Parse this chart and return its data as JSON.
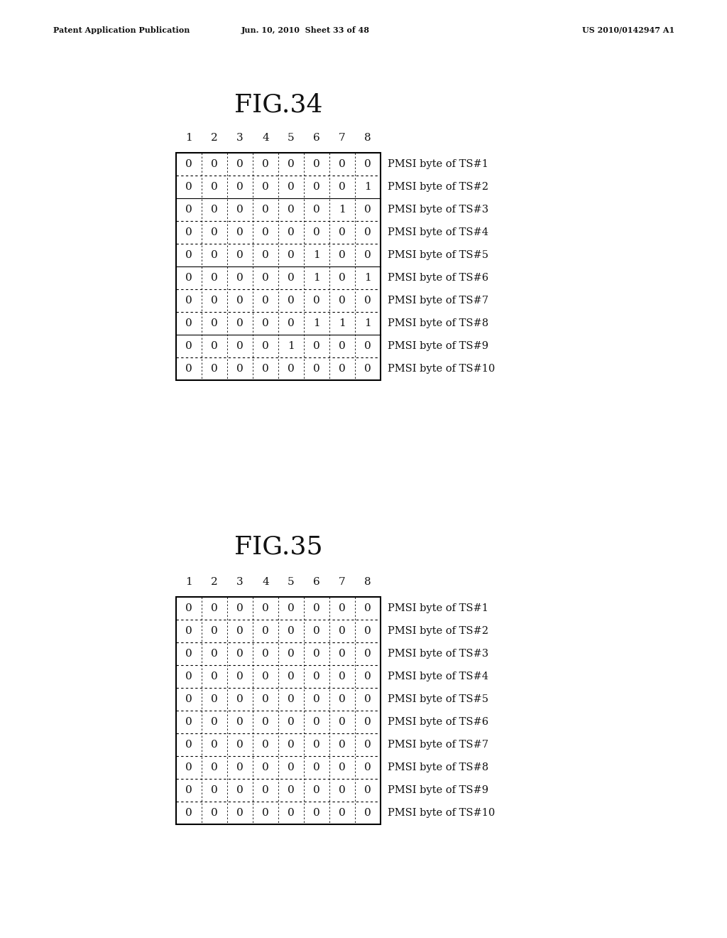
{
  "header_text_left": "Patent Application Publication",
  "header_text_mid": "Jun. 10, 2010  Sheet 33 of 48",
  "header_text_right": "US 2010/0142947 A1",
  "fig34_title": "FIG.34",
  "fig35_title": "FIG.35",
  "col_headers": [
    "1",
    "2",
    "3",
    "4",
    "5",
    "6",
    "7",
    "8"
  ],
  "fig34_data": [
    [
      0,
      0,
      0,
      0,
      0,
      0,
      0,
      0
    ],
    [
      0,
      0,
      0,
      0,
      0,
      0,
      0,
      1
    ],
    [
      0,
      0,
      0,
      0,
      0,
      0,
      1,
      0
    ],
    [
      0,
      0,
      0,
      0,
      0,
      0,
      0,
      0
    ],
    [
      0,
      0,
      0,
      0,
      0,
      1,
      0,
      0
    ],
    [
      0,
      0,
      0,
      0,
      0,
      1,
      0,
      1
    ],
    [
      0,
      0,
      0,
      0,
      0,
      0,
      0,
      0
    ],
    [
      0,
      0,
      0,
      0,
      0,
      1,
      1,
      1
    ],
    [
      0,
      0,
      0,
      0,
      1,
      0,
      0,
      0
    ],
    [
      0,
      0,
      0,
      0,
      0,
      0,
      0,
      0
    ]
  ],
  "fig34_dotted_rows": [
    0,
    3,
    6,
    9
  ],
  "fig35_data": [
    [
      0,
      0,
      0,
      0,
      0,
      0,
      0,
      0
    ],
    [
      0,
      0,
      0,
      0,
      0,
      0,
      0,
      0
    ],
    [
      0,
      0,
      0,
      0,
      0,
      0,
      0,
      0
    ],
    [
      0,
      0,
      0,
      0,
      0,
      0,
      0,
      0
    ],
    [
      0,
      0,
      0,
      0,
      0,
      0,
      0,
      0
    ],
    [
      0,
      0,
      0,
      0,
      0,
      0,
      0,
      0
    ],
    [
      0,
      0,
      0,
      0,
      0,
      0,
      0,
      0
    ],
    [
      0,
      0,
      0,
      0,
      0,
      0,
      0,
      0
    ],
    [
      0,
      0,
      0,
      0,
      0,
      0,
      0,
      0
    ],
    [
      0,
      0,
      0,
      0,
      0,
      0,
      0,
      0
    ]
  ],
  "fig35_dotted_rows": [
    0,
    1,
    2,
    3,
    4,
    5,
    6,
    7,
    8,
    9
  ],
  "row_labels": [
    "PMSI byte of TS#1",
    "PMSI byte of TS#2",
    "PMSI byte of TS#3",
    "PMSI byte of TS#4",
    "PMSI byte of TS#5",
    "PMSI byte of TS#6",
    "PMSI byte of TS#7",
    "PMSI byte of TS#8",
    "PMSI byte of TS#9",
    "PMSI byte of TS#10"
  ],
  "bg_color": "#ffffff"
}
